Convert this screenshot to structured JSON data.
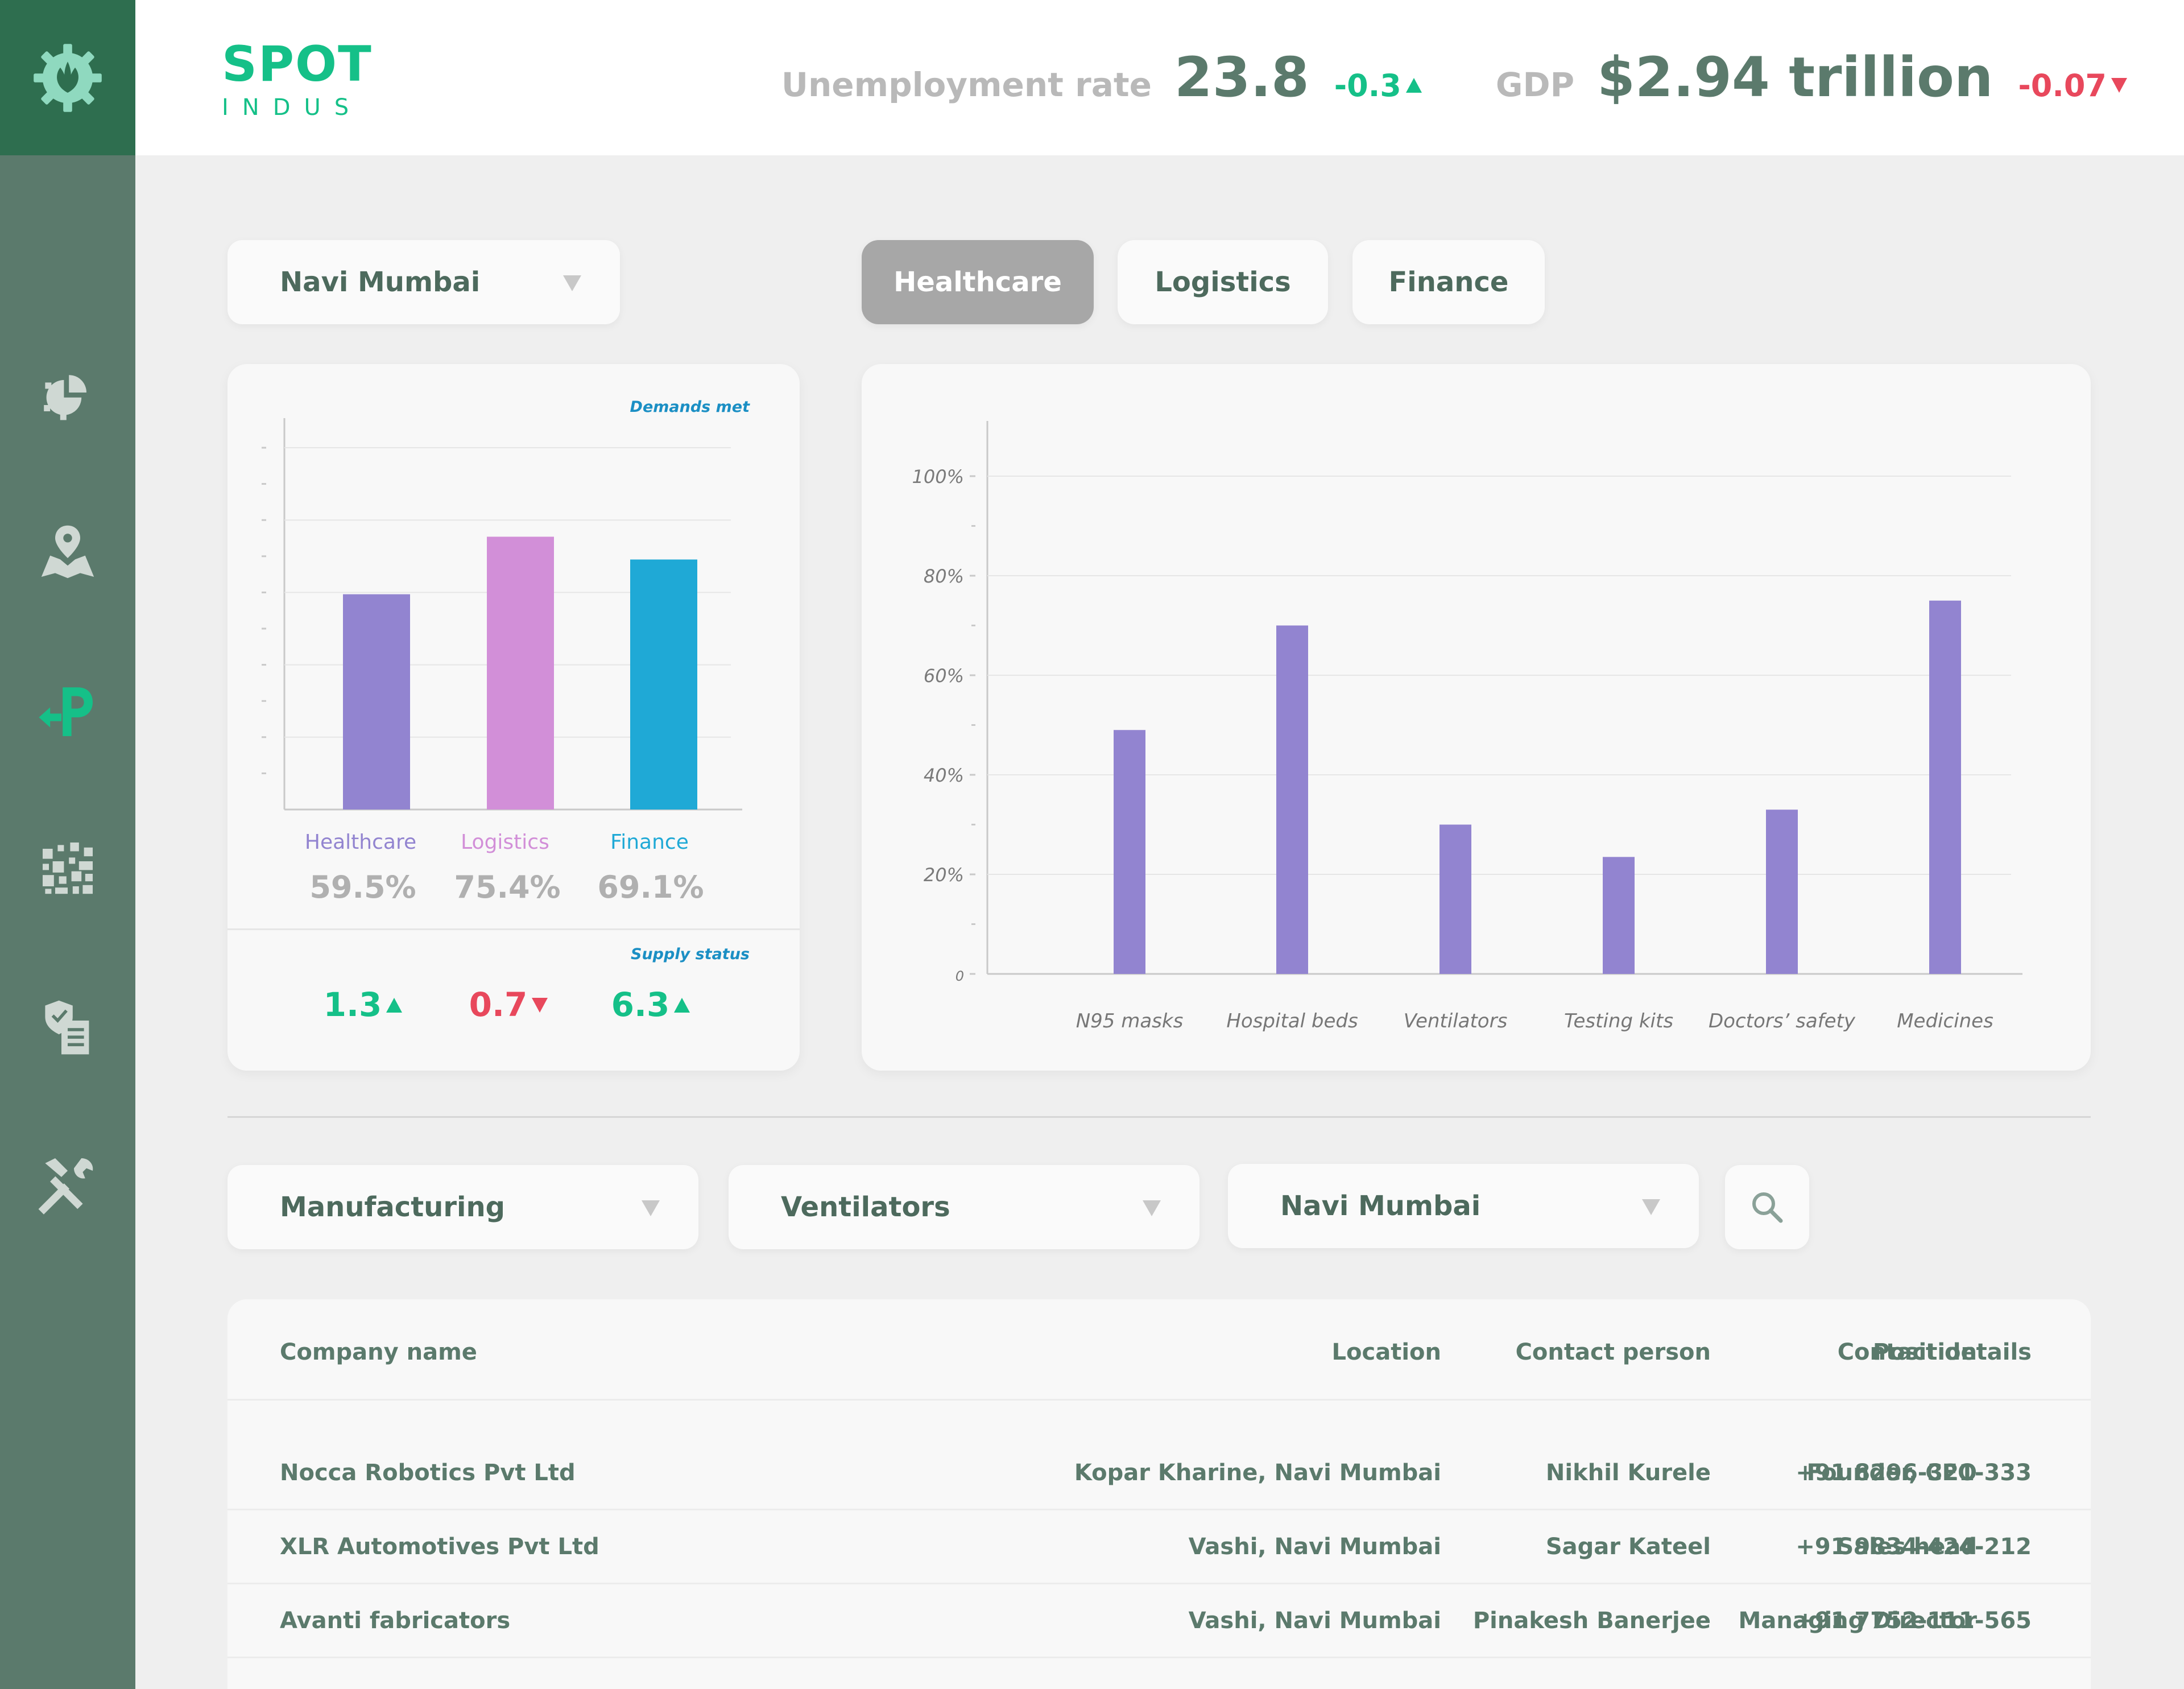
{
  "header": {
    "brand_top": "SPOT",
    "brand_bottom": "INDUS",
    "unemployment_label": "Unemployment rate",
    "unemployment_value": "23.8",
    "unemployment_delta": "-0.3",
    "gdp_label": "GDP",
    "gdp_value": "$2.94 trillion",
    "gdp_delta": "-0.07"
  },
  "sidebar": {
    "items": [
      {
        "icon": "leaf-gear-icon"
      },
      {
        "icon": "pie-gear-icon"
      },
      {
        "icon": "map-pin-icon"
      },
      {
        "icon": "parking-arrow-icon",
        "active": true
      },
      {
        "icon": "qr-grid-icon"
      },
      {
        "icon": "shield-document-icon"
      },
      {
        "icon": "tools-icon"
      }
    ]
  },
  "filters_top": {
    "location": "Navi Mumbai",
    "tabs": [
      "Healthcare",
      "Logistics",
      "Finance"
    ],
    "active_tab": "Healthcare"
  },
  "summary_card": {
    "demands_label": "Demands met",
    "supply_label": "Supply status",
    "categories": [
      {
        "name": "Healthcare",
        "percent": "59.5%",
        "supply": "1.3",
        "trend": "up"
      },
      {
        "name": "Logistics",
        "percent": "75.4%",
        "supply": "0.7",
        "trend": "down"
      },
      {
        "name": "Finance",
        "percent": "69.1%",
        "supply": "6.3",
        "trend": "up"
      }
    ]
  },
  "chart_data": [
    {
      "type": "bar",
      "title": "Demands met",
      "categories": [
        "Healthcare",
        "Logistics",
        "Finance"
      ],
      "values": [
        59.5,
        75.4,
        69.1
      ],
      "colors": [
        "#9284d0",
        "#d28fd8",
        "#1fa9d6"
      ],
      "ylim": [
        0,
        100
      ],
      "grid": true
    },
    {
      "type": "bar",
      "categories": [
        "N95 masks",
        "Hospital beds",
        "Ventilators",
        "Testing kits",
        "Doctors’ safety",
        "Medicines"
      ],
      "values": [
        49,
        70,
        30,
        23.5,
        33,
        75
      ],
      "ylim": [
        0,
        100
      ],
      "yticks": [
        "0",
        "20%",
        "40%",
        "60%",
        "80%",
        "100%"
      ],
      "color": "#9284d0",
      "grid": true
    }
  ],
  "filters_bottom": {
    "sector": "Manufacturing",
    "product": "Ventilators",
    "location": "Navi Mumbai"
  },
  "table": {
    "headers": [
      "Company name",
      "Location",
      "Contact person",
      "Position",
      "Contact details"
    ],
    "rows": [
      [
        "Nocca Robotics Pvt Ltd",
        "Kopar Kharine, Navi Mumbai",
        "Nikhil Kurele",
        "Founder, CEO",
        "+91 8296-321-333"
      ],
      [
        "XLR Automotives Pvt Ltd",
        "Vashi, Navi Mumbai",
        "Sagar Kateel",
        "Sales head",
        "+91 9834-424-212"
      ],
      [
        "Avanti fabricators",
        "Vashi, Navi Mumbai",
        "Pinakesh Banerjee",
        "Managing Director",
        "+91 7752-111-565"
      ]
    ]
  },
  "colors": {
    "sidebar": "#5b7a6c",
    "sidebar_logo": "#2e6e4f",
    "accent_green": "#15c088",
    "negative_red": "#e8485c",
    "bar_purple": "#9284d0"
  }
}
